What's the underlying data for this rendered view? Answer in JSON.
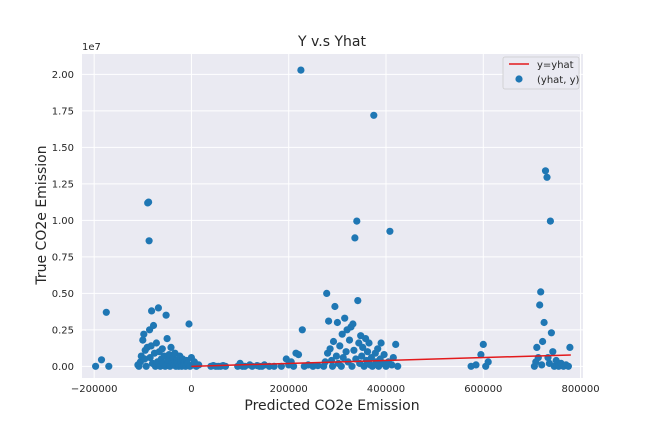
{
  "chart_data": {
    "type": "scatter",
    "title": "Y v.s Yhat",
    "xlabel": "Predicted CO2e Emission",
    "ylabel": "True CO2e Emission",
    "y_offset_label": "1e7",
    "xlim": [
      -225000,
      805000
    ],
    "ylim": [
      -800000,
      21400000
    ],
    "xticks": [
      -200000,
      0,
      200000,
      400000,
      600000,
      800000
    ],
    "xtick_labels": [
      "−200000",
      "0",
      "200000",
      "400000",
      "600000",
      "800000"
    ],
    "yticks": [
      0,
      2500000,
      5000000,
      7500000,
      10000000,
      12500000,
      15000000,
      17500000,
      20000000
    ],
    "ytick_labels": [
      "0.00",
      "0.25",
      "0.50",
      "0.75",
      "1.00",
      "1.25",
      "1.50",
      "1.75",
      "2.00"
    ],
    "grid": true,
    "legend_position": "top-right",
    "series": [
      {
        "name": "y=yhat",
        "kind": "line",
        "color": "#e31a1c",
        "x": [
          0,
          780000
        ],
        "y": [
          0,
          780000
        ]
      },
      {
        "name": "(yhat, y)",
        "kind": "scatter",
        "color": "#1f77b4",
        "points": [
          [
            -197000,
            0
          ],
          [
            -185000,
            450000
          ],
          [
            -175000,
            3700000
          ],
          [
            -170000,
            0
          ],
          [
            -110000,
            100000
          ],
          [
            -108000,
            0
          ],
          [
            -105000,
            300000
          ],
          [
            -103000,
            700000
          ],
          [
            -100000,
            1800000
          ],
          [
            -98000,
            2200000
          ],
          [
            -96000,
            500000
          ],
          [
            -95000,
            1100000
          ],
          [
            -93000,
            0
          ],
          [
            -91000,
            1300000
          ],
          [
            -90000,
            11200000
          ],
          [
            -88000,
            11250000
          ],
          [
            -87000,
            8600000
          ],
          [
            -86000,
            2500000
          ],
          [
            -85000,
            600000
          ],
          [
            -83000,
            1400000
          ],
          [
            -82000,
            3800000
          ],
          [
            -80000,
            200000
          ],
          [
            -78000,
            2800000
          ],
          [
            -76000,
            900000
          ],
          [
            -74000,
            0
          ],
          [
            -72000,
            1600000
          ],
          [
            -70000,
            300000
          ],
          [
            -68000,
            4000000
          ],
          [
            -66000,
            1000000
          ],
          [
            -64000,
            0
          ],
          [
            -62000,
            500000
          ],
          [
            -60000,
            1200000
          ],
          [
            -58000,
            200000
          ],
          [
            -56000,
            700000
          ],
          [
            -54000,
            0
          ],
          [
            -52000,
            3500000
          ],
          [
            -50000,
            1900000
          ],
          [
            -48000,
            400000
          ],
          [
            -46000,
            800000
          ],
          [
            -44000,
            0
          ],
          [
            -42000,
            1300000
          ],
          [
            -40000,
            300000
          ],
          [
            -38000,
            600000
          ],
          [
            -36000,
            100000
          ],
          [
            -34000,
            900000
          ],
          [
            -32000,
            0
          ],
          [
            -30000,
            400000
          ],
          [
            -28000,
            200000
          ],
          [
            -26000,
            0
          ],
          [
            -24000,
            700000
          ],
          [
            -22000,
            300000
          ],
          [
            -20000,
            0
          ],
          [
            -18000,
            500000
          ],
          [
            -16000,
            100000
          ],
          [
            -14000,
            300000
          ],
          [
            -12000,
            0
          ],
          [
            -10000,
            400000
          ],
          [
            -8000,
            200000
          ],
          [
            -5000,
            2900000
          ],
          [
            -3000,
            0
          ],
          [
            0,
            600000
          ],
          [
            3000,
            100000
          ],
          [
            6000,
            300000
          ],
          [
            10000,
            0
          ],
          [
            15000,
            100000
          ],
          [
            40000,
            0
          ],
          [
            45000,
            50000
          ],
          [
            50000,
            0
          ],
          [
            55000,
            0
          ],
          [
            60000,
            0
          ],
          [
            65000,
            50000
          ],
          [
            70000,
            0
          ],
          [
            95000,
            0
          ],
          [
            100000,
            200000
          ],
          [
            105000,
            0
          ],
          [
            110000,
            0
          ],
          [
            120000,
            100000
          ],
          [
            125000,
            0
          ],
          [
            135000,
            50000
          ],
          [
            140000,
            0
          ],
          [
            145000,
            0
          ],
          [
            150000,
            100000
          ],
          [
            160000,
            0
          ],
          [
            170000,
            0
          ],
          [
            185000,
            0
          ],
          [
            195000,
            500000
          ],
          [
            200000,
            100000
          ],
          [
            205000,
            300000
          ],
          [
            210000,
            0
          ],
          [
            215000,
            900000
          ],
          [
            220000,
            800000
          ],
          [
            225000,
            20300000
          ],
          [
            228000,
            2500000
          ],
          [
            232000,
            0
          ],
          [
            240000,
            100000
          ],
          [
            250000,
            0
          ],
          [
            260000,
            50000
          ],
          [
            272000,
            0
          ],
          [
            275000,
            300000
          ],
          [
            278000,
            5000000
          ],
          [
            280000,
            900000
          ],
          [
            282000,
            3100000
          ],
          [
            285000,
            1200000
          ],
          [
            288000,
            400000
          ],
          [
            290000,
            0
          ],
          [
            292000,
            1700000
          ],
          [
            295000,
            4100000
          ],
          [
            298000,
            700000
          ],
          [
            300000,
            3000000
          ],
          [
            302000,
            200000
          ],
          [
            305000,
            1400000
          ],
          [
            308000,
            0
          ],
          [
            310000,
            2200000
          ],
          [
            312000,
            600000
          ],
          [
            315000,
            3300000
          ],
          [
            318000,
            1000000
          ],
          [
            320000,
            2500000
          ],
          [
            322000,
            300000
          ],
          [
            325000,
            1800000
          ],
          [
            328000,
            2700000
          ],
          [
            330000,
            0
          ],
          [
            332000,
            2900000
          ],
          [
            334000,
            1100000
          ],
          [
            336000,
            8800000
          ],
          [
            338000,
            500000
          ],
          [
            340000,
            9950000
          ],
          [
            342000,
            4500000
          ],
          [
            344000,
            1600000
          ],
          [
            346000,
            200000
          ],
          [
            348000,
            2100000
          ],
          [
            350000,
            700000
          ],
          [
            352000,
            1300000
          ],
          [
            355000,
            0
          ],
          [
            358000,
            1900000
          ],
          [
            360000,
            400000
          ],
          [
            362000,
            1000000
          ],
          [
            365000,
            1600000
          ],
          [
            368000,
            100000
          ],
          [
            370000,
            600000
          ],
          [
            372000,
            0
          ],
          [
            375000,
            17200000
          ],
          [
            378000,
            900000
          ],
          [
            380000,
            300000
          ],
          [
            383000,
            1200000
          ],
          [
            385000,
            0
          ],
          [
            388000,
            500000
          ],
          [
            390000,
            1600000
          ],
          [
            393000,
            200000
          ],
          [
            396000,
            800000
          ],
          [
            400000,
            0
          ],
          [
            405000,
            300000
          ],
          [
            408000,
            9250000
          ],
          [
            412000,
            100000
          ],
          [
            415000,
            600000
          ],
          [
            420000,
            1500000
          ],
          [
            424000,
            0
          ],
          [
            575000,
            0
          ],
          [
            585000,
            100000
          ],
          [
            595000,
            800000
          ],
          [
            600000,
            1500000
          ],
          [
            605000,
            0
          ],
          [
            610000,
            300000
          ],
          [
            705000,
            0
          ],
          [
            708000,
            300000
          ],
          [
            710000,
            1300000
          ],
          [
            713000,
            600000
          ],
          [
            716000,
            4200000
          ],
          [
            718000,
            5100000
          ],
          [
            720000,
            100000
          ],
          [
            722000,
            1700000
          ],
          [
            725000,
            3000000
          ],
          [
            728000,
            13400000
          ],
          [
            731000,
            12950000
          ],
          [
            733000,
            600000
          ],
          [
            736000,
            200000
          ],
          [
            738000,
            9950000
          ],
          [
            740000,
            2300000
          ],
          [
            743000,
            1000000
          ],
          [
            746000,
            0
          ],
          [
            750000,
            400000
          ],
          [
            755000,
            0
          ],
          [
            760000,
            200000
          ],
          [
            765000,
            0
          ],
          [
            770000,
            100000
          ],
          [
            775000,
            0
          ],
          [
            778000,
            1300000
          ]
        ]
      }
    ]
  }
}
